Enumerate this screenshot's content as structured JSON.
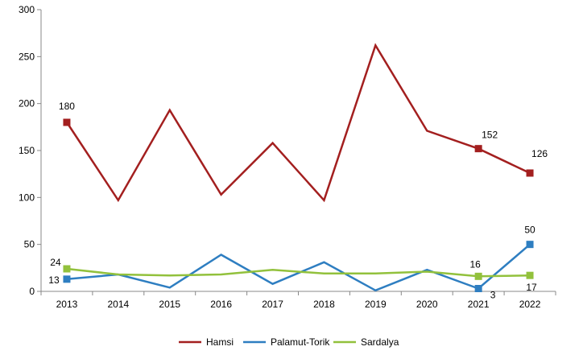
{
  "chart_data": {
    "type": "line",
    "categories": [
      "2013",
      "2014",
      "2015",
      "2016",
      "2017",
      "2018",
      "2019",
      "2020",
      "2021",
      "2022"
    ],
    "ylim": [
      0,
      300
    ],
    "yticks": [
      "0",
      "50",
      "100",
      "150",
      "200",
      "250",
      "300"
    ],
    "grid": false,
    "legend_position": "bottom",
    "series": [
      {
        "name": "Hamsi",
        "color": "#A31F1F",
        "values": [
          180,
          97,
          193,
          103,
          158,
          97,
          262,
          171,
          152,
          126
        ],
        "markers": [
          0,
          8,
          9
        ],
        "labels": [
          "180",
          "",
          "",
          "",
          "",
          "",
          "",
          "",
          "152",
          "126"
        ]
      },
      {
        "name": "Palamut-Torik",
        "color": "#2E7EC1",
        "values": [
          13,
          18,
          4,
          39,
          8,
          31,
          1,
          23,
          3,
          50
        ],
        "markers": [
          0,
          8,
          9
        ],
        "labels": [
          "13",
          "",
          "",
          "",
          "",
          "",
          "",
          "",
          "3",
          "50"
        ]
      },
      {
        "name": "Sardalya",
        "color": "#92C13C",
        "values": [
          24,
          18,
          17,
          18,
          23,
          19,
          19,
          21,
          16,
          17
        ],
        "markers": [
          0,
          8,
          9
        ],
        "labels": [
          "24",
          "",
          "",
          "",
          "",
          "",
          "",
          "",
          "16",
          "17"
        ]
      }
    ]
  }
}
